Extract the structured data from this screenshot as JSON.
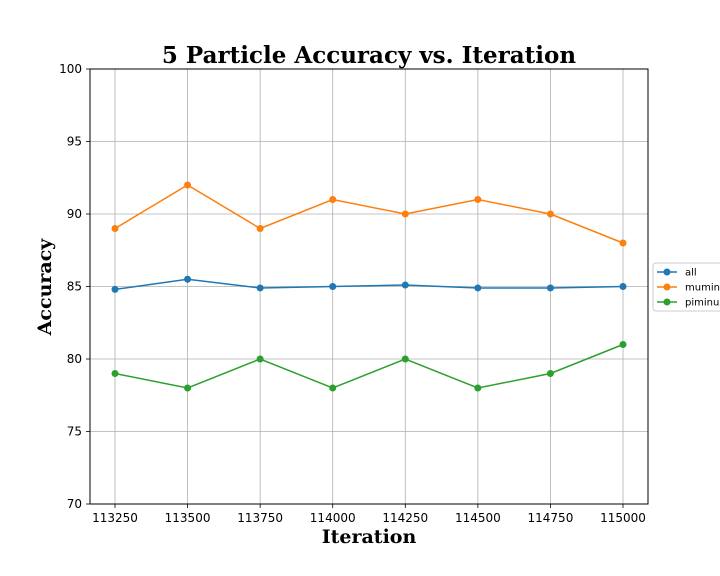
{
  "chart_data": {
    "type": "line",
    "title": "5 Particle Accuracy vs. Iteration",
    "xlabel": "Iteration",
    "ylabel": "Accuracy",
    "x": [
      113250,
      113500,
      113750,
      114000,
      114250,
      114500,
      114750,
      115000
    ],
    "xticks": [
      "113250",
      "113500",
      "113750",
      "114000",
      "114250",
      "114500",
      "114750",
      "115000"
    ],
    "yticks": [
      "70",
      "75",
      "80",
      "85",
      "90",
      "95",
      "100"
    ],
    "ylim": [
      70,
      100
    ],
    "grid": true,
    "legend_position": "center-right",
    "series": [
      {
        "name": "all",
        "color": "#1f77b4",
        "values": [
          84.8,
          85.5,
          84.9,
          85.0,
          85.1,
          84.9,
          84.9,
          85.0
        ]
      },
      {
        "name": "muminus",
        "color": "#ff7f0e",
        "values": [
          89,
          92,
          89,
          91,
          90,
          91,
          90,
          88
        ]
      },
      {
        "name": "piminus",
        "color": "#2ca02c",
        "values": [
          79,
          78,
          80,
          78,
          80,
          78,
          79,
          81
        ]
      }
    ]
  }
}
